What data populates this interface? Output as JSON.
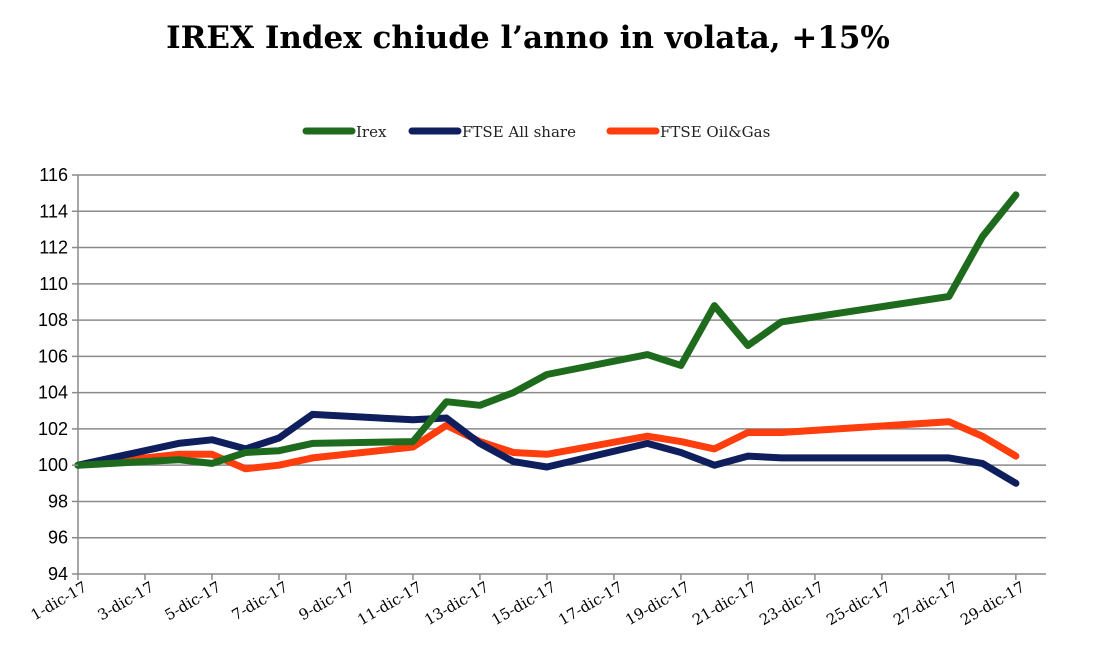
{
  "chart_data": {
    "type": "line",
    "title": "IREX Index chiude l’anno in volata, +15%",
    "xlabel": "",
    "ylabel": "",
    "ylim": [
      94,
      116
    ],
    "yticks": [
      "94",
      "96",
      "98",
      "100",
      "102",
      "104",
      "106",
      "108",
      "110",
      "112",
      "114",
      "116"
    ],
    "xticks": [
      "1-dic-17",
      "3-dic-17",
      "5-dic-17",
      "7-dic-17",
      "9-dic-17",
      "11-dic-17",
      "13-dic-17",
      "15-dic-17",
      "17-dic-17",
      "19-dic-17",
      "21-dic-17",
      "23-dic-17",
      "25-dic-17",
      "27-dic-17",
      "29-dic-17"
    ],
    "xlim": [
      1,
      29.9
    ],
    "grid": "horizontal",
    "legend": "top-center",
    "series": [
      {
        "name": "Irex",
        "color": "#1e6b1e",
        "points": [
          [
            1,
            100
          ],
          [
            4,
            100.3
          ],
          [
            5,
            100.1
          ],
          [
            6,
            100.7
          ],
          [
            7,
            100.8
          ],
          [
            8,
            101.2
          ],
          [
            11,
            101.3
          ],
          [
            12,
            103.5
          ],
          [
            13,
            103.3
          ],
          [
            14,
            104
          ],
          [
            15,
            105
          ],
          [
            18,
            106.1
          ],
          [
            19,
            105.5
          ],
          [
            20,
            108.8
          ],
          [
            21,
            106.6
          ],
          [
            22,
            107.9
          ],
          [
            27,
            109.3
          ],
          [
            28,
            112.6
          ],
          [
            29,
            114.9
          ]
        ]
      },
      {
        "name": "FTSE All share",
        "color": "#0f1f5e",
        "points": [
          [
            1,
            100
          ],
          [
            4,
            101.2
          ],
          [
            5,
            101.4
          ],
          [
            6,
            100.9
          ],
          [
            7,
            101.5
          ],
          [
            8,
            102.8
          ],
          [
            11,
            102.5
          ],
          [
            12,
            102.6
          ],
          [
            13,
            101.2
          ],
          [
            14,
            100.2
          ],
          [
            15,
            99.9
          ],
          [
            18,
            101.2
          ],
          [
            19,
            100.7
          ],
          [
            20,
            100
          ],
          [
            21,
            100.5
          ],
          [
            22,
            100.4
          ],
          [
            27,
            100.4
          ],
          [
            28,
            100.1
          ],
          [
            29,
            99
          ]
        ]
      },
      {
        "name": "FTSE Oil&Gas",
        "color": "#ff3d0d",
        "points": [
          [
            1,
            100
          ],
          [
            4,
            100.6
          ],
          [
            5,
            100.6
          ],
          [
            6,
            99.8
          ],
          [
            7,
            100
          ],
          [
            8,
            100.4
          ],
          [
            11,
            101
          ],
          [
            12,
            102.2
          ],
          [
            13,
            101.3
          ],
          [
            14,
            100.7
          ],
          [
            15,
            100.6
          ],
          [
            18,
            101.6
          ],
          [
            19,
            101.3
          ],
          [
            20,
            100.9
          ],
          [
            21,
            101.8
          ],
          [
            22,
            101.8
          ],
          [
            27,
            102.4
          ],
          [
            28,
            101.6
          ],
          [
            29,
            100.5
          ]
        ]
      }
    ]
  }
}
